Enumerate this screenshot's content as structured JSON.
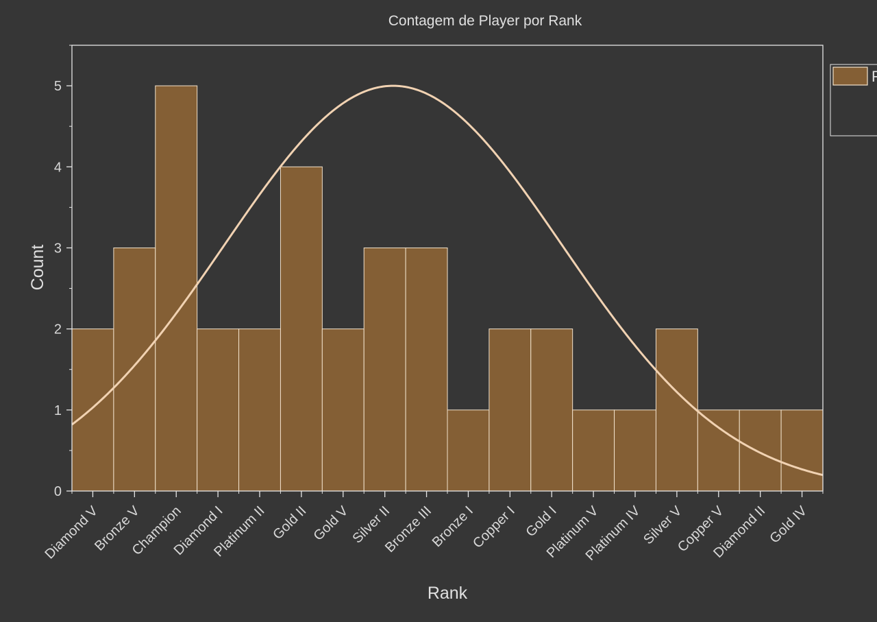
{
  "chart_data": {
    "type": "bar",
    "title": "Contagem de Player por Rank",
    "xlabel": "Rank",
    "ylabel": "Count",
    "categories": [
      "Diamond V",
      "Bronze V",
      "Champion",
      "Diamond I",
      "Platinum II",
      "Gold II",
      "Gold V",
      "Silver II",
      "Bronze III",
      "Bronze I",
      "Copper I",
      "Gold I",
      "Platinum V",
      "Platinum IV",
      "Silver V",
      "Copper V",
      "Diamond II",
      "Gold IV"
    ],
    "values": [
      2,
      3,
      5,
      2,
      2,
      4,
      2,
      3,
      3,
      1,
      2,
      2,
      1,
      1,
      2,
      1,
      1,
      1
    ],
    "yticks": [
      0,
      1,
      2,
      3,
      4,
      5
    ],
    "ylim": [
      0,
      5.5
    ],
    "grid": false,
    "legend": {
      "position": "top-right",
      "label": "R"
    },
    "fit_curve": {
      "type": "normal",
      "peak": 5.0,
      "center_index": 7.2,
      "sigma_bins": 4.05
    },
    "colors": {
      "background": "#363636",
      "bar_fill": "#845f35",
      "bar_stroke": "#f2e2cc",
      "curve": "#f1d2b2",
      "axis": "#e6e6e6",
      "text": "#d8d8d8"
    }
  }
}
